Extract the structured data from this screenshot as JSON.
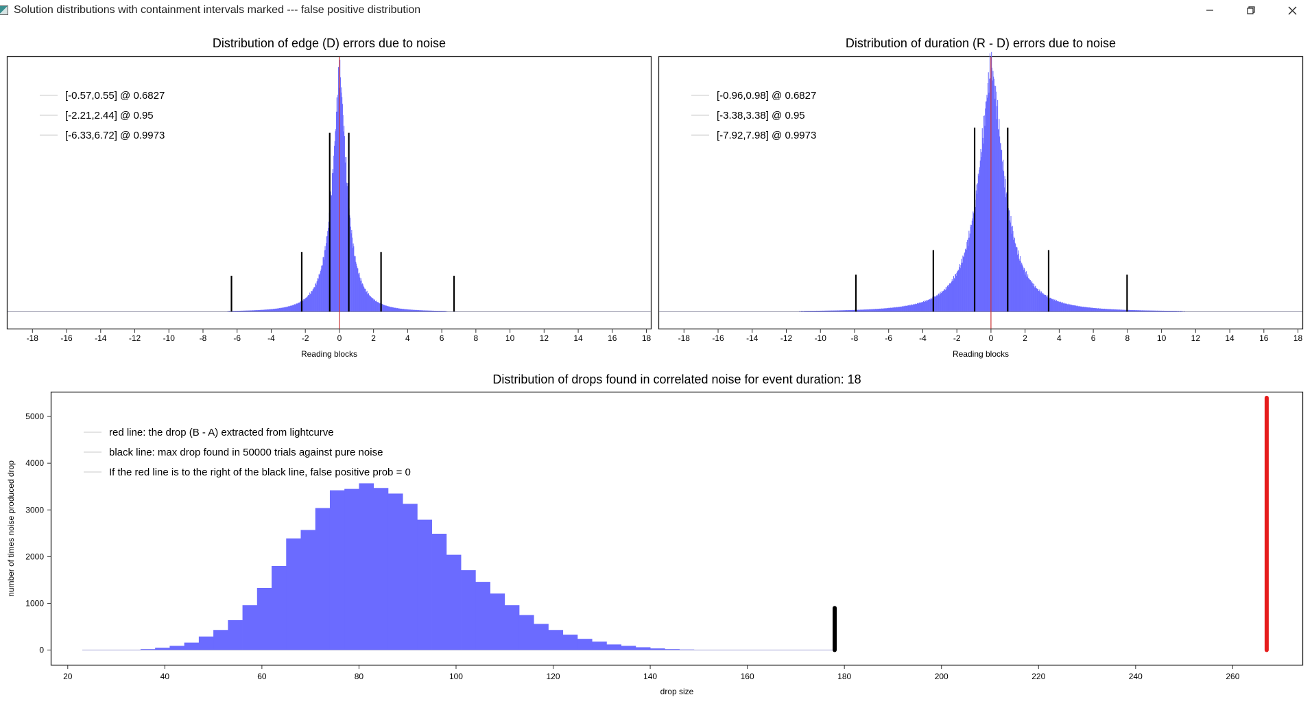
{
  "window": {
    "title": "Solution distributions with containment intervals marked --- false positive distribution",
    "icon": "app-icon",
    "controls": [
      "minimize-icon",
      "restore-icon",
      "close-icon"
    ]
  },
  "colors": {
    "histogram": "#6b6bff",
    "center_line": "#cc3333",
    "marker": "#000000",
    "red_drop": "#e61c1c"
  },
  "chart_data": [
    {
      "id": "edge",
      "type": "bar",
      "title": "Distribution of edge (D) errors due to noise",
      "xlabel": "Reading blocks",
      "ylabel": "",
      "xlim": [
        -19.5,
        18.3
      ],
      "ylim": [
        0,
        1.06
      ],
      "xticks": [
        -18,
        -16,
        -14,
        -12,
        -10,
        -8,
        -6,
        -4,
        -2,
        0,
        2,
        4,
        6,
        8,
        10,
        12,
        14,
        16,
        18
      ],
      "distribution": {
        "center": 0,
        "peak": 1.0,
        "scale_left": 0.42,
        "scale_right": 0.4
      },
      "center_line": 0,
      "legend": [
        "[-0.57,0.55] @ 0.6827",
        "[-2.21,2.44] @ 0.95",
        "[-6.33,6.72] @ 0.9973"
      ],
      "intervals": [
        {
          "low": -0.57,
          "high": 0.55,
          "level": 0.6827,
          "marker_height": 0.75
        },
        {
          "low": -2.21,
          "high": 2.44,
          "level": 0.95,
          "marker_height": 0.25
        },
        {
          "low": -6.33,
          "high": 6.72,
          "level": 0.9973,
          "marker_height": 0.15
        }
      ]
    },
    {
      "id": "duration",
      "type": "bar",
      "title": "Distribution of duration (R - D) errors due to noise",
      "xlabel": "Reading blocks",
      "ylabel": "",
      "xlim": [
        -19.5,
        18.3
      ],
      "ylim": [
        0,
        1.03
      ],
      "xticks": [
        -18,
        -16,
        -14,
        -12,
        -10,
        -8,
        -6,
        -4,
        -2,
        0,
        2,
        4,
        6,
        8,
        10,
        12,
        14,
        16,
        18
      ],
      "distribution": {
        "center": 0,
        "peak": 1.0,
        "scale_left": 0.72,
        "scale_right": 0.72
      },
      "center_line": 0,
      "legend": [
        "[-0.96,0.98] @ 0.6827",
        "[-3.38,3.38] @ 0.95",
        "[-7.92,7.98] @ 0.9973"
      ],
      "intervals": [
        {
          "low": -0.96,
          "high": 0.98,
          "level": 0.6827,
          "marker_height": 0.75
        },
        {
          "low": -3.38,
          "high": 3.38,
          "level": 0.95,
          "marker_height": 0.25
        },
        {
          "low": -7.92,
          "high": 7.98,
          "level": 0.9973,
          "marker_height": 0.15
        }
      ]
    },
    {
      "id": "drops",
      "type": "bar",
      "title": "Distribution of drops found in correlated noise for event duration: 18",
      "xlabel": "drop size",
      "ylabel": "number of times noise produced drop",
      "xlim": [
        16.5,
        274.5
      ],
      "ylim": [
        -330,
        5530
      ],
      "xticks": [
        20,
        40,
        60,
        80,
        100,
        120,
        140,
        160,
        180,
        200,
        220,
        240,
        260
      ],
      "yticks": [
        0,
        1000,
        2000,
        3000,
        4000,
        5000
      ],
      "bin_width": 3,
      "bins_start": 23,
      "counts": [
        0,
        0,
        0,
        5,
        20,
        50,
        90,
        160,
        290,
        430,
        640,
        960,
        1330,
        1800,
        2390,
        2570,
        3040,
        3420,
        3450,
        3570,
        3470,
        3350,
        3130,
        2790,
        2490,
        2040,
        1710,
        1460,
        1210,
        960,
        750,
        560,
        430,
        330,
        240,
        180,
        120,
        90,
        60,
        35,
        20,
        12,
        6,
        3,
        1,
        0,
        0,
        0,
        0,
        0,
        0,
        0
      ],
      "black_line": {
        "x": 178,
        "y_max": 900
      },
      "red_line": {
        "x": 267,
        "y_max": 5400
      },
      "legend": [
        "red line: the drop (B - A) extracted from lightcurve",
        "black line: max drop found in 50000 trials against pure noise",
        "If the red line is to the right of the black line, false positive prob = 0"
      ]
    }
  ]
}
